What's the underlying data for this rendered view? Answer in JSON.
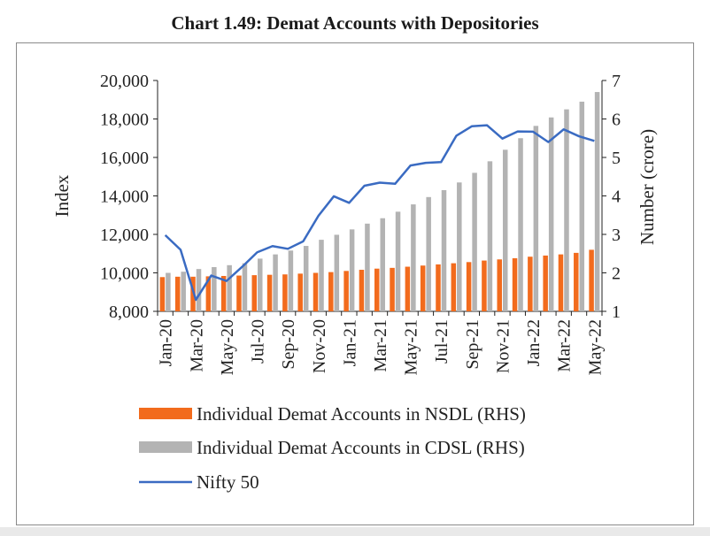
{
  "chart_data": {
    "type": "bar+line",
    "title": "Chart 1.49: Demat Accounts with Depositories",
    "ylabel_left": "Index",
    "ylabel_right": "Number (crore)",
    "ylim_left": [
      8000,
      20000
    ],
    "yticks_left": [
      "8,000",
      "10,000",
      "12,000",
      "14,000",
      "16,000",
      "18,000",
      "20,000"
    ],
    "ylim_right": [
      1,
      7
    ],
    "yticks_right": [
      "1",
      "2",
      "3",
      "4",
      "5",
      "6",
      "7"
    ],
    "categories": [
      "Jan-20",
      "Feb-20",
      "Mar-20",
      "Apr-20",
      "May-20",
      "Jun-20",
      "Jul-20",
      "Aug-20",
      "Sep-20",
      "Oct-20",
      "Nov-20",
      "Dec-20",
      "Jan-21",
      "Feb-21",
      "Mar-21",
      "Apr-21",
      "May-21",
      "Jun-21",
      "Jul-21",
      "Aug-21",
      "Sep-21",
      "Oct-21",
      "Nov-21",
      "Dec-21",
      "Jan-22",
      "Feb-22",
      "Mar-22",
      "Apr-22",
      "May-22"
    ],
    "x_tick_labels": [
      "Jan-20",
      "Mar-20",
      "May-20",
      "Jul-20",
      "Sep-20",
      "Nov-20",
      "Jan-21",
      "Mar-21",
      "May-21",
      "Jul-21",
      "Sep-21",
      "Nov-21",
      "Jan-22",
      "Mar-22",
      "May-22"
    ],
    "series": [
      {
        "name": "Individual Demat Accounts in NSDL (RHS)",
        "type": "bar",
        "axis": "right",
        "color": "#f26b1d",
        "values": [
          1.89,
          1.9,
          1.9,
          1.91,
          1.92,
          1.93,
          1.94,
          1.95,
          1.96,
          1.98,
          2.0,
          2.02,
          2.05,
          2.08,
          2.11,
          2.13,
          2.16,
          2.19,
          2.22,
          2.25,
          2.28,
          2.32,
          2.35,
          2.38,
          2.42,
          2.45,
          2.48,
          2.52,
          2.6
        ]
      },
      {
        "name": "Individual Demat Accounts in CDSL (RHS)",
        "type": "bar",
        "axis": "right",
        "color": "#b3b3b3",
        "values": [
          2.0,
          2.03,
          2.1,
          2.15,
          2.2,
          2.25,
          2.37,
          2.48,
          2.58,
          2.7,
          2.86,
          2.99,
          3.13,
          3.28,
          3.42,
          3.59,
          3.78,
          3.97,
          4.15,
          4.35,
          4.6,
          4.9,
          5.2,
          5.5,
          5.82,
          6.04,
          6.25,
          6.45,
          6.7
        ]
      },
      {
        "name": "Nifty 50",
        "type": "line",
        "axis": "left",
        "color": "#3a6bc2",
        "values": [
          11960,
          11200,
          8600,
          9860,
          9580,
          10300,
          11070,
          11390,
          11250,
          11640,
          12970,
          13980,
          13640,
          14530,
          14690,
          14630,
          15580,
          15720,
          15760,
          17130,
          17620,
          17670,
          16980,
          17350,
          17340,
          16800,
          17460,
          17100,
          16860
        ]
      }
    ],
    "legend_position": "bottom",
    "grid": false
  }
}
